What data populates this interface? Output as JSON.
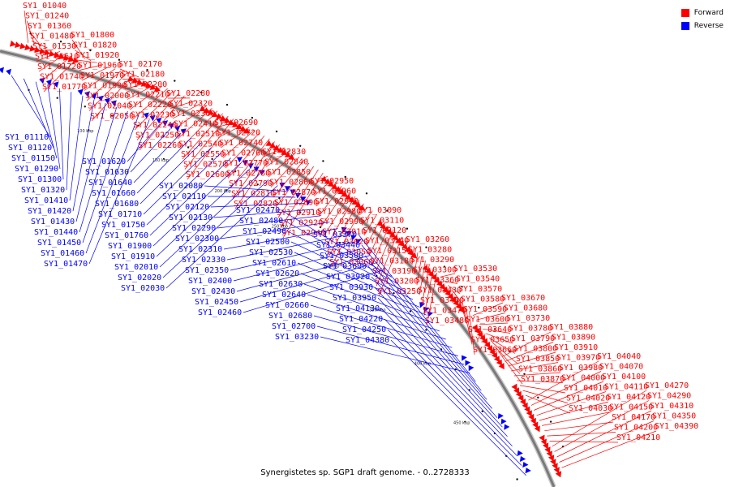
{
  "caption": "Synergistetes sp. SGP1 draft genome. - 0..2728333",
  "legend": [
    {
      "label": "Forward",
      "color": "#ff0000"
    },
    {
      "label": "Reverse",
      "color": "#0000ff"
    }
  ],
  "scale_ticks": [
    "100 kbp",
    "150 kbp",
    "200 kbp",
    "250 kbp",
    "300 kbp",
    "350 kbp",
    "400 kbp",
    "450 kbp"
  ],
  "forward_labels": [
    "SY1_01040",
    "SY1_01240",
    "SY1_01360",
    "SY1_01480",
    "SY1_01530",
    "SY1_01610",
    "SY1_01720",
    "SY1_01740",
    "SY1_01770",
    "SY1_01800",
    "SY1_01820",
    "SY1_01920",
    "SY1_01960",
    "SY1_01970",
    "SY1_01990",
    "SY1_02000",
    "SY1_02040",
    "SY1_02050",
    "SY1_02170",
    "SY1_02180",
    "SY1_02200",
    "SY1_02210",
    "SY1_02220",
    "SY1_02230",
    "SY1_02240",
    "SY1_02250",
    "SY1_02260",
    "SY1_02280",
    "SY1_02320",
    "SY1_02360",
    "SY1_02410",
    "SY1_02510",
    "SY1_02540",
    "SY1_02550",
    "SY1_02570",
    "SY1_02600",
    "SY1_02690",
    "SY1_02720",
    "SY1_02740",
    "SY1_02760",
    "SY1_02770",
    "SY1_02780",
    "SY1_02790",
    "SY1_02810",
    "SY1_02820",
    "SY1_02830",
    "SY1_02840",
    "SY1_02850",
    "SY1_02860",
    "SY1_02870",
    "SY1_02890",
    "SY1_02910",
    "SY1_02920",
    "SY1_02940",
    "SY1_02950",
    "SY1_02960",
    "SY1_02970",
    "SY1_02980",
    "SY1_02990",
    "SY1_03010",
    "SY1_03020",
    "SY1_03050",
    "SY1_03060",
    "SY1_03090",
    "SY1_03110",
    "SY1_03120",
    "SY1_03140",
    "SY1_03150",
    "SY1_03180",
    "SY1_03190",
    "SY1_03200",
    "SY1_03250",
    "SY1_03260",
    "SY1_03280",
    "SY1_03290",
    "SY1_03300",
    "SY1_03360",
    "SY1_03430",
    "SY1_03450",
    "SY1_03470",
    "SY1_03480",
    "SY1_03530",
    "SY1_03540",
    "SY1_03570",
    "SY1_03580",
    "SY1_03590",
    "SY1_03600",
    "SY1_03640",
    "SY1_03650",
    "SY1_03660",
    "SY1_03670",
    "SY1_03680",
    "SY1_03730",
    "SY1_03780",
    "SY1_03790",
    "SY1_03800",
    "SY1_03850",
    "SY1_03860",
    "SY1_03870",
    "SY1_03880",
    "SY1_03890",
    "SY1_03910",
    "SY1_03970",
    "SY1_03980",
    "SY1_04000",
    "SY1_04010",
    "SY1_04020",
    "SY1_04030",
    "SY1_04040",
    "SY1_04070",
    "SY1_04100",
    "SY1_04110",
    "SY1_04120",
    "SY1_04150",
    "SY1_04170",
    "SY1_04200",
    "SY1_04210",
    "SY1_04270",
    "SY1_04290",
    "SY1_04310",
    "SY1_04350",
    "SY1_04390"
  ],
  "reverse_labels": [
    "SY1_01110",
    "SY1_01120",
    "SY1_01150",
    "SY1_01290",
    "SY1_01300",
    "SY1_01320",
    "SY1_01410",
    "SY1_01420",
    "SY1_01430",
    "SY1_01440",
    "SY1_01450",
    "SY1_01460",
    "SY1_01470",
    "SY1_01620",
    "SY1_01630",
    "SY1_01640",
    "SY1_01660",
    "SY1_01680",
    "SY1_01710",
    "SY1_01750",
    "SY1_01760",
    "SY1_01900",
    "SY1_01910",
    "SY1_02010",
    "SY1_02020",
    "SY1_02030",
    "SY1_02080",
    "SY1_02110",
    "SY1_02120",
    "SY1_02130",
    "SY1_02290",
    "SY1_02300",
    "SY1_02310",
    "SY1_02330",
    "SY1_02350",
    "SY1_02400",
    "SY1_02430",
    "SY1_02450",
    "SY1_02460",
    "SY1_02470",
    "SY1_02480",
    "SY1_02490",
    "SY1_02500",
    "SY1_02530",
    "SY1_02610",
    "SY1_02620",
    "SY1_02630",
    "SY1_02640",
    "SY1_02660",
    "SY1_02680",
    "SY1_02700",
    "SY1_03230",
    "SY1_03370",
    "SY1_03440",
    "SY1_03500",
    "SY1_03690",
    "SY1_03920",
    "SY1_03930",
    "SY1_03950",
    "SY1_04130",
    "SY1_04220",
    "SY1_04250",
    "SY1_04380"
  ]
}
